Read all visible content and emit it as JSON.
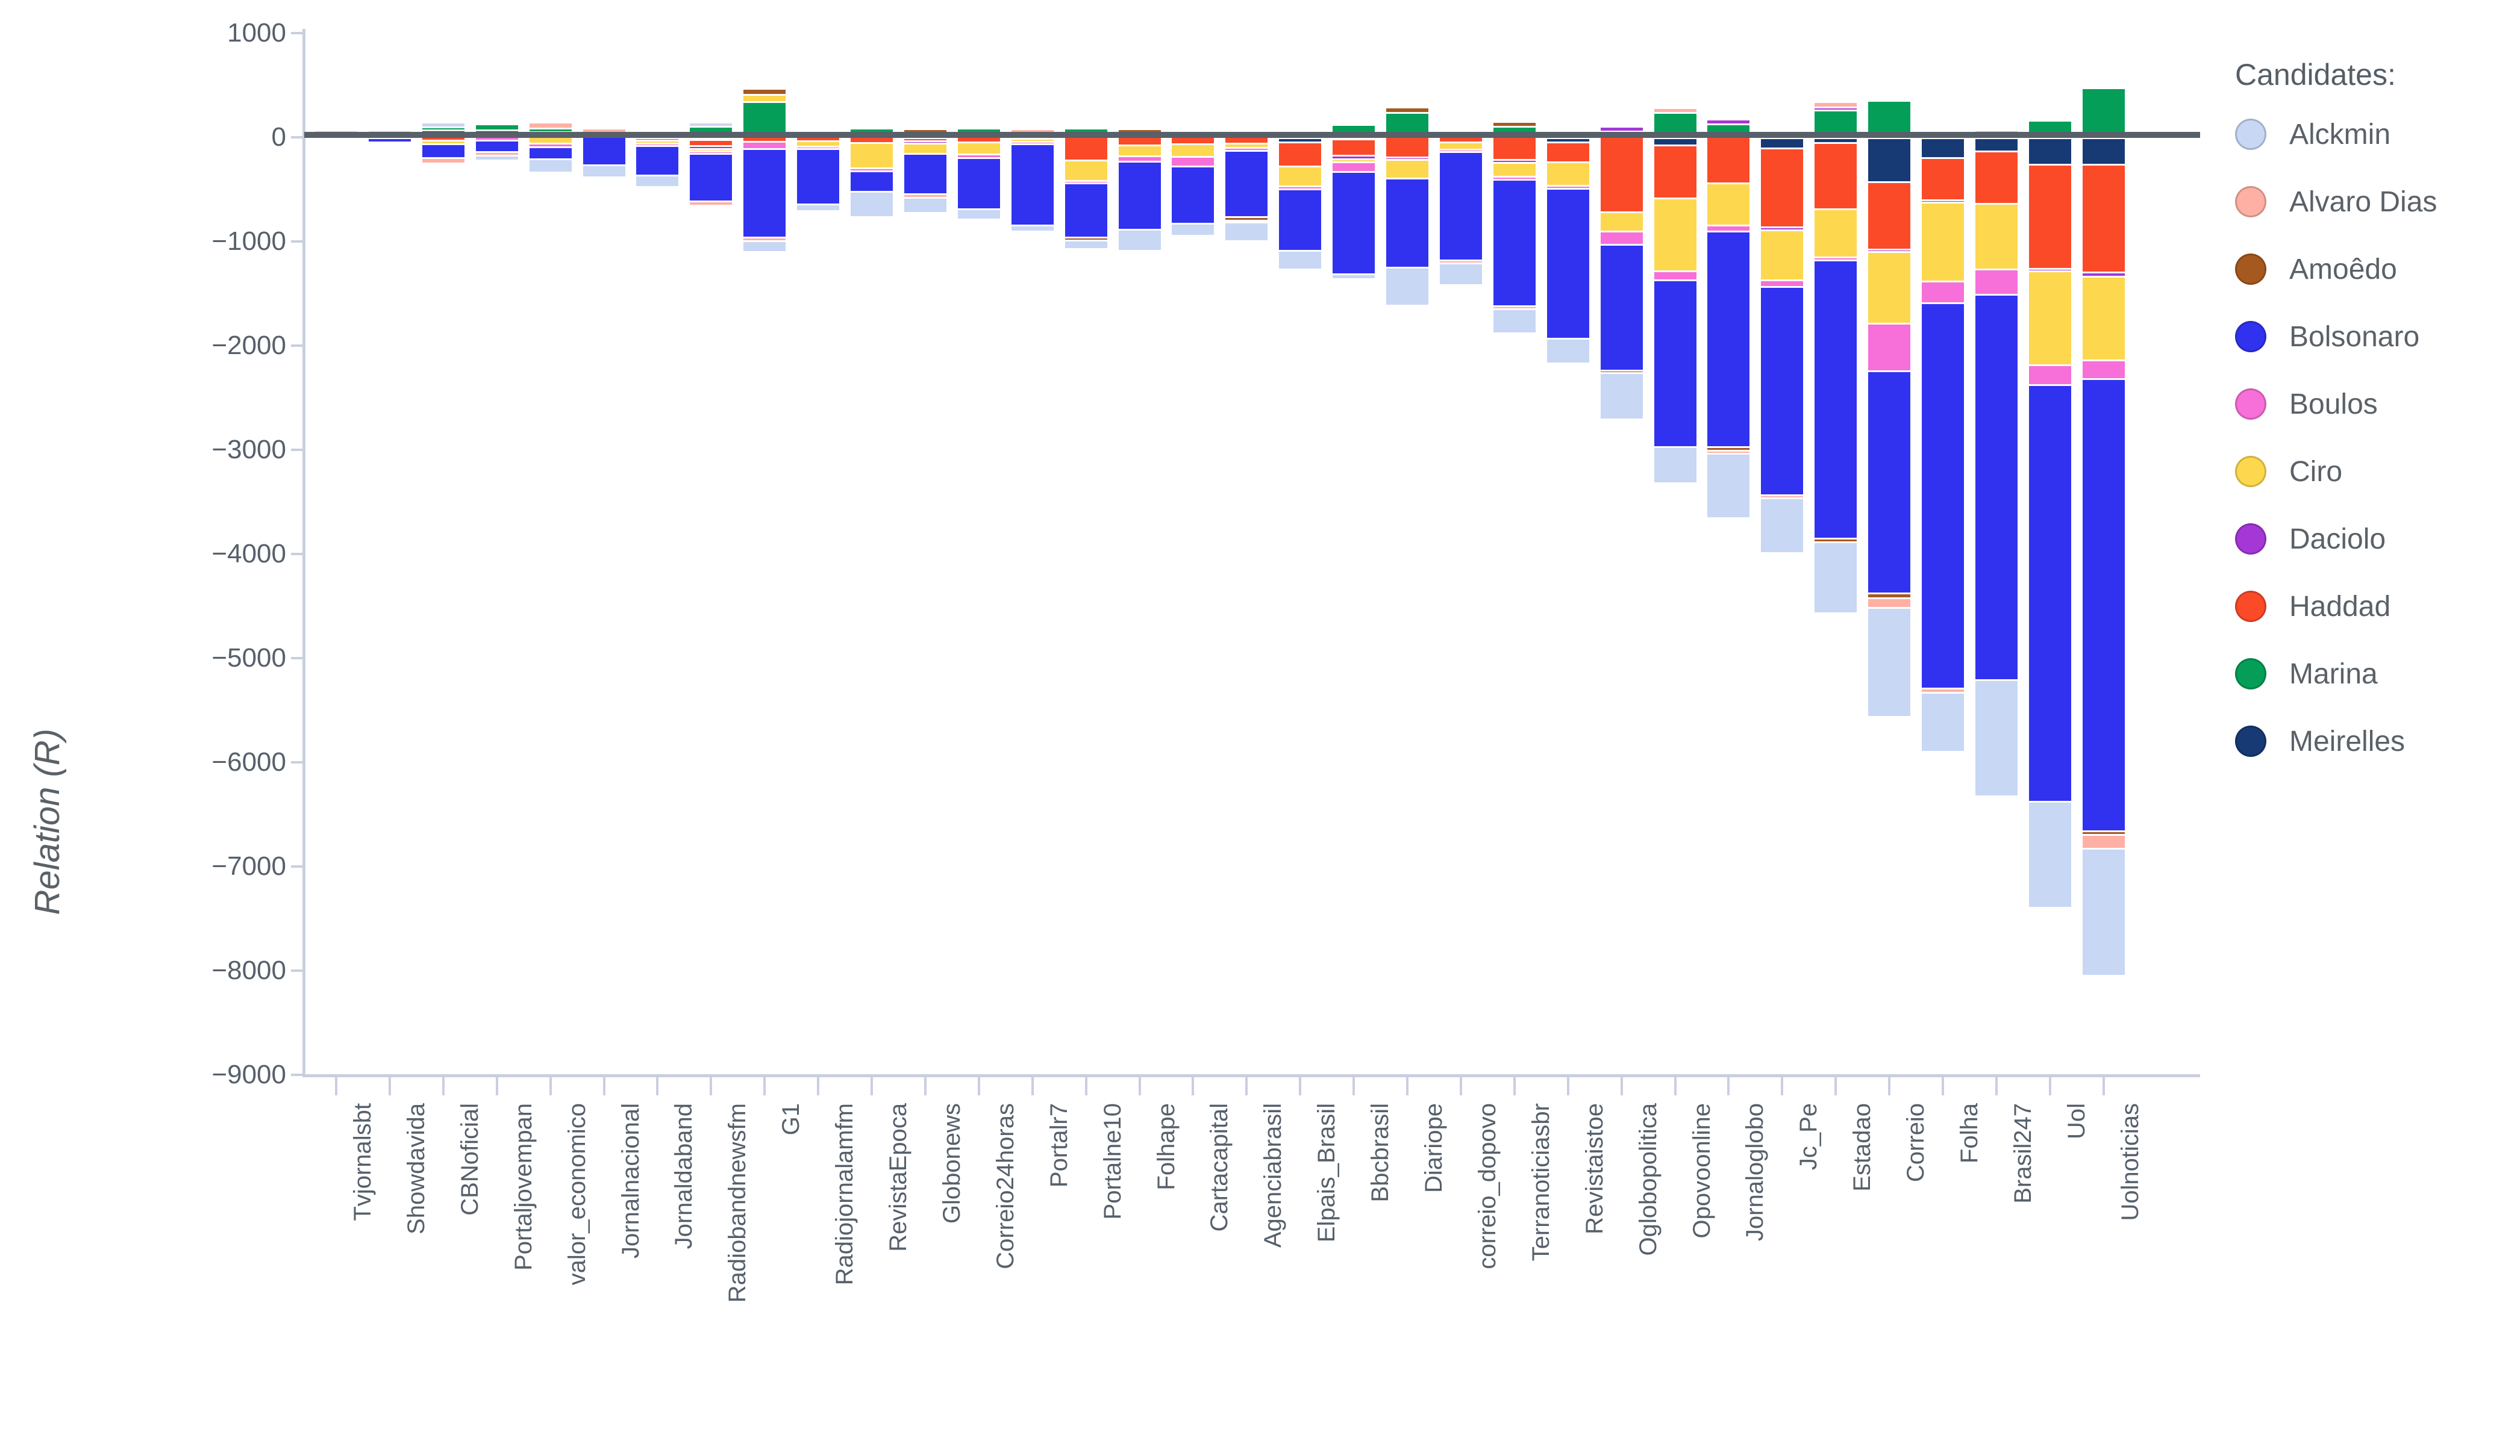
{
  "y_axis": {
    "title": "Relation (R)",
    "tick_labels": [
      "1000",
      "0",
      "−1000",
      "−2000",
      "−3000",
      "−4000",
      "−5000",
      "−6000",
      "−7000",
      "−8000",
      "−9000"
    ],
    "tick_values": [
      1000,
      0,
      -1000,
      -2000,
      -3000,
      -4000,
      -5000,
      -6000,
      -7000,
      -8000,
      -9000
    ]
  },
  "legend": {
    "title": "Candidates:"
  },
  "colors": {
    "zero_line": "#586069",
    "axis": "#c9cfdf",
    "text": "#5a6168"
  },
  "chart_data": {
    "type": "bar",
    "stacked": true,
    "title": "",
    "xlabel": "",
    "ylabel": "Relation (R)",
    "ylim": [
      -9000,
      1000
    ],
    "legend_position": "right",
    "grid": false,
    "stack_order_outward": [
      "Meirelles",
      "Marina",
      "Haddad",
      "Daciolo",
      "Ciro",
      "Boulos",
      "Bolsonaro",
      "Amoêdo",
      "Alvaro Dias",
      "Alckmin"
    ],
    "categories": [
      "Tvjornalsbt",
      "Showdavida",
      "CBNoficial",
      "Portaljovempan",
      "valor_economico",
      "Jornalnacional",
      "Jornaldaband",
      "Radiobandnewsfm",
      "G1",
      "Radiojornalamfm",
      "RevistaEpoca",
      "Globonews",
      "Correio24horas",
      "Portalr7",
      "Portalne10",
      "Folhape",
      "Cartacapital",
      "Agenciabrasil",
      "Elpais_Brasil",
      "Bbcbrasil",
      "Diariope",
      "correio_dopovo",
      "Terranoticiasbr",
      "Revistaistoe",
      "Oglobopolitica",
      "Opovoonline",
      "Jornaloglobo",
      "Jc_Pe",
      "Estadao",
      "Correio",
      "Folha",
      "Brasil247",
      "Uol",
      "Uolnoticias"
    ],
    "series": [
      {
        "name": "Alckmin",
        "color": "#c7d7f4",
        "values": [
          0,
          60,
          30,
          -30,
          -110,
          -100,
          -95,
          25,
          -90,
          -45,
          -230,
          -130,
          -80,
          -40,
          -65,
          -185,
          -95,
          -160,
          -165,
          -25,
          -345,
          -190,
          -210,
          -220,
          -430,
          -330,
          -600,
          -505,
          -665,
          -1030,
          -550,
          -1100,
          -1000,
          -1200
        ]
      },
      {
        "name": "Alvaro Dias",
        "color": "#ffb0a5",
        "values": [
          0,
          0,
          -35,
          -35,
          40,
          30,
          0,
          -25,
          -35,
          0,
          0,
          -35,
          0,
          30,
          0,
          0,
          0,
          -20,
          0,
          0,
          0,
          -30,
          -30,
          0,
          0,
          30,
          -30,
          -30,
          35,
          -90,
          -40,
          30,
          0,
          -130
        ]
      },
      {
        "name": "Amoêdo",
        "color": "#a5591f",
        "values": [
          0,
          0,
          0,
          0,
          0,
          0,
          50,
          0,
          40,
          0,
          0,
          30,
          0,
          0,
          -30,
          30,
          0,
          -30,
          0,
          0,
          30,
          0,
          30,
          25,
          -20,
          0,
          -30,
          42,
          -35,
          -50,
          0,
          0,
          0,
          -40
        ]
      },
      {
        "name": "Bolsonaro",
        "color": "#3032f0",
        "values": [
          0,
          -40,
          -135,
          -110,
          -115,
          -275,
          -280,
          -460,
          -850,
          -530,
          -195,
          -385,
          -490,
          -780,
          -520,
          -655,
          -550,
          -640,
          -590,
          -985,
          -860,
          -1040,
          -1215,
          -1440,
          -1210,
          -1600,
          -2070,
          -2000,
          -2670,
          -2130,
          -3700,
          -3700,
          -4000,
          -4340
        ]
      },
      {
        "name": "Boulos",
        "color": "#f76fd8",
        "values": [
          0,
          0,
          0,
          -40,
          -35,
          0,
          -25,
          -20,
          -70,
          -25,
          -30,
          40,
          -35,
          -25,
          -25,
          -50,
          -95,
          -27,
          -30,
          -90,
          0,
          -25,
          -25,
          -27,
          -125,
          -87,
          -60,
          -65,
          -30,
          -460,
          -210,
          -245,
          -190,
          -175
        ]
      },
      {
        "name": "Ciro",
        "color": "#fdd84e",
        "values": [
          60,
          0,
          -35,
          0,
          -70,
          0,
          -30,
          -25,
          70,
          -50,
          -240,
          -100,
          -115,
          -25,
          -195,
          -105,
          -120,
          -40,
          -190,
          -30,
          -175,
          -65,
          -135,
          -225,
          -185,
          -700,
          -405,
          -480,
          -460,
          -685,
          -760,
          -630,
          -900,
          -809
        ]
      },
      {
        "name": "Daciolo",
        "color": "#a437d6",
        "values": [
          0,
          0,
          0,
          0,
          0,
          0,
          0,
          -25,
          0,
          0,
          0,
          -23,
          0,
          0,
          0,
          0,
          0,
          0,
          0,
          -35,
          -27,
          0,
          -30,
          25,
          30,
          0,
          27,
          -25,
          27,
          -25,
          -23,
          0,
          -25,
          -39
        ]
      },
      {
        "name": "Haddad",
        "color": "#fb4a28",
        "values": [
          0,
          0,
          -40,
          0,
          0,
          0,
          -40,
          -60,
          -50,
          -48,
          -65,
          -46,
          -60,
          -25,
          -230,
          -85,
          -75,
          -70,
          -230,
          -155,
          -200,
          -60,
          -225,
          -190,
          -730,
          -510,
          -450,
          -760,
          -635,
          -645,
          -400,
          -500,
          -1000,
          -1035
        ]
      },
      {
        "name": "Marina",
        "color": "#049e58",
        "values": [
          0,
          0,
          30,
          40,
          40,
          45,
          0,
          110,
          345,
          50,
          37,
          0,
          73,
          40,
          73,
          0,
          46,
          46,
          50,
          108,
          245,
          42,
          110,
          0,
          65,
          240,
          135,
          0,
          265,
          340,
          42,
          25,
          150,
          460
        ]
      },
      {
        "name": "Meirelles",
        "color": "#173a75",
        "values": [
          0,
          0,
          75,
          75,
          55,
          0,
          0,
          -35,
          0,
          0,
          37,
          0,
          0,
          0,
          0,
          42,
          0,
          0,
          -58,
          -30,
          0,
          0,
          0,
          -60,
          0,
          -85,
          0,
          -115,
          -65,
          -440,
          -210,
          -145,
          -270,
          -270
        ]
      }
    ]
  }
}
